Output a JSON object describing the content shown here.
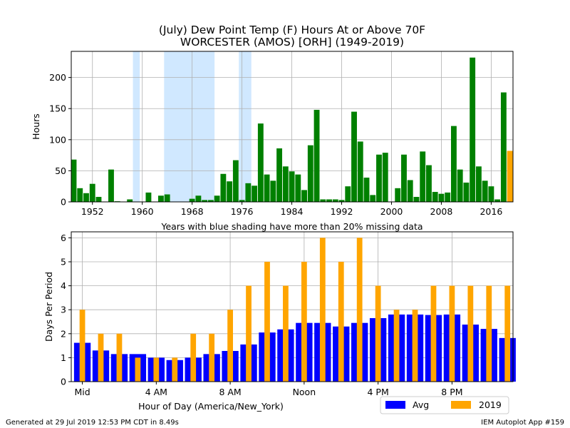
{
  "title_line1": "(July) Dew Point Temp (F) Hours At or Above 70F",
  "title_line2": "WORCESTER (AMOS) [ORH] (1949-2019)",
  "footer_left": "Generated at 29 Jul 2019 12:53 PM CDT in 8.49s",
  "footer_right": "IEM Autoplot App #159",
  "colors": {
    "history": "#008000",
    "current": "#FFA500",
    "avg": "#0000FF",
    "shade": "#D0E8FF",
    "grid": "#B0B0B0"
  },
  "chart_data": [
    {
      "type": "bar",
      "title": "(July) Dew Point Temp (F) Hours At or Above 70F",
      "subtitle": "WORCESTER (AMOS) [ORH] (1949-2019)",
      "xlabel": "Years with blue shading have more than 20% missing data",
      "ylabel": "Hours",
      "xlim": [
        1948.6,
        2019.5
      ],
      "ylim": [
        0,
        242
      ],
      "xticks": [
        1952,
        1960,
        1968,
        1976,
        1984,
        1992,
        2000,
        2008,
        2016
      ],
      "yticks": [
        0,
        50,
        100,
        150,
        200
      ],
      "grid": true,
      "shaded_years": [
        [
          1958.5,
          1959.6
        ],
        [
          1963.5,
          1971.6
        ],
        [
          1975.5,
          1977.5
        ]
      ],
      "series": [
        {
          "values": [
            [
              1949,
              68
            ],
            [
              1950,
              22
            ],
            [
              1951,
              14
            ],
            [
              1952,
              29
            ],
            [
              1953,
              8
            ],
            [
              1954,
              0
            ],
            [
              1955,
              52
            ],
            [
              1956,
              1
            ],
            [
              1957,
              0
            ],
            [
              1958,
              4
            ],
            [
              1959,
              0
            ],
            [
              1960,
              0
            ],
            [
              1961,
              15
            ],
            [
              1962,
              0
            ],
            [
              1963,
              10
            ],
            [
              1964,
              12
            ],
            [
              1965,
              0
            ],
            [
              1966,
              0
            ],
            [
              1967,
              0
            ],
            [
              1968,
              5
            ],
            [
              1969,
              10
            ],
            [
              1970,
              3
            ],
            [
              1971,
              3
            ],
            [
              1972,
              10
            ],
            [
              1973,
              45
            ],
            [
              1974,
              33
            ],
            [
              1975,
              67
            ],
            [
              1976,
              3
            ],
            [
              1977,
              30
            ],
            [
              1978,
              26
            ],
            [
              1979,
              126
            ],
            [
              1980,
              44
            ],
            [
              1981,
              34
            ],
            [
              1982,
              86
            ],
            [
              1983,
              57
            ],
            [
              1984,
              49
            ],
            [
              1985,
              44
            ],
            [
              1986,
              19
            ],
            [
              1987,
              91
            ],
            [
              1988,
              148
            ],
            [
              1989,
              4
            ],
            [
              1990,
              4
            ],
            [
              1991,
              4
            ],
            [
              1992,
              3
            ],
            [
              1993,
              25
            ],
            [
              1994,
              145
            ],
            [
              1995,
              97
            ],
            [
              1996,
              39
            ],
            [
              1997,
              11
            ],
            [
              1998,
              76
            ],
            [
              1999,
              79
            ],
            [
              2000,
              0
            ],
            [
              2001,
              22
            ],
            [
              2002,
              76
            ],
            [
              2003,
              35
            ],
            [
              2004,
              8
            ],
            [
              2005,
              81
            ],
            [
              2006,
              59
            ],
            [
              2007,
              16
            ],
            [
              2008,
              13
            ],
            [
              2009,
              15
            ],
            [
              2010,
              122
            ],
            [
              2011,
              52
            ],
            [
              2012,
              31
            ],
            [
              2013,
              232
            ],
            [
              2014,
              57
            ],
            [
              2015,
              34
            ],
            [
              2016,
              25
            ],
            [
              2017,
              4
            ],
            [
              2018,
              176
            ]
          ]
        },
        {
          "values": [
            [
              2019,
              82
            ]
          ]
        }
      ]
    },
    {
      "type": "bar",
      "xlabel": "Hour of Day (America/New_York)",
      "ylabel": "Days Per Period",
      "xlim": [
        -0.6,
        23.3
      ],
      "ylim": [
        0,
        6.25
      ],
      "xticks": [
        0,
        4,
        8,
        12,
        16,
        20
      ],
      "xticklabels": [
        "Mid",
        "4 AM",
        "8 AM",
        "Noon",
        "4 PM",
        "8 PM"
      ],
      "yticks": [
        0,
        1,
        2,
        3,
        4,
        5,
        6
      ],
      "grid": true,
      "legend_position": "bottom-right",
      "categories": [
        0,
        1,
        2,
        3,
        4,
        5,
        6,
        7,
        8,
        9,
        10,
        11,
        12,
        13,
        14,
        15,
        16,
        17,
        18,
        19,
        20,
        21,
        22,
        23
      ],
      "series": [
        {
          "name": "Avg",
          "values": [
            1.62,
            1.3,
            1.15,
            1.15,
            1.0,
            0.9,
            1.0,
            1.15,
            1.28,
            1.55,
            2.05,
            2.18,
            2.45,
            2.45,
            2.3,
            2.45,
            2.65,
            2.8,
            2.8,
            2.78,
            2.8,
            2.38,
            2.2,
            1.82
          ]
        },
        {
          "name": "2019",
          "values": [
            3,
            2,
            2,
            1,
            1,
            1,
            2,
            2,
            3,
            4,
            5,
            4,
            5,
            6,
            5,
            6,
            4,
            3,
            3,
            4,
            4,
            4,
            4,
            4
          ]
        }
      ]
    }
  ]
}
